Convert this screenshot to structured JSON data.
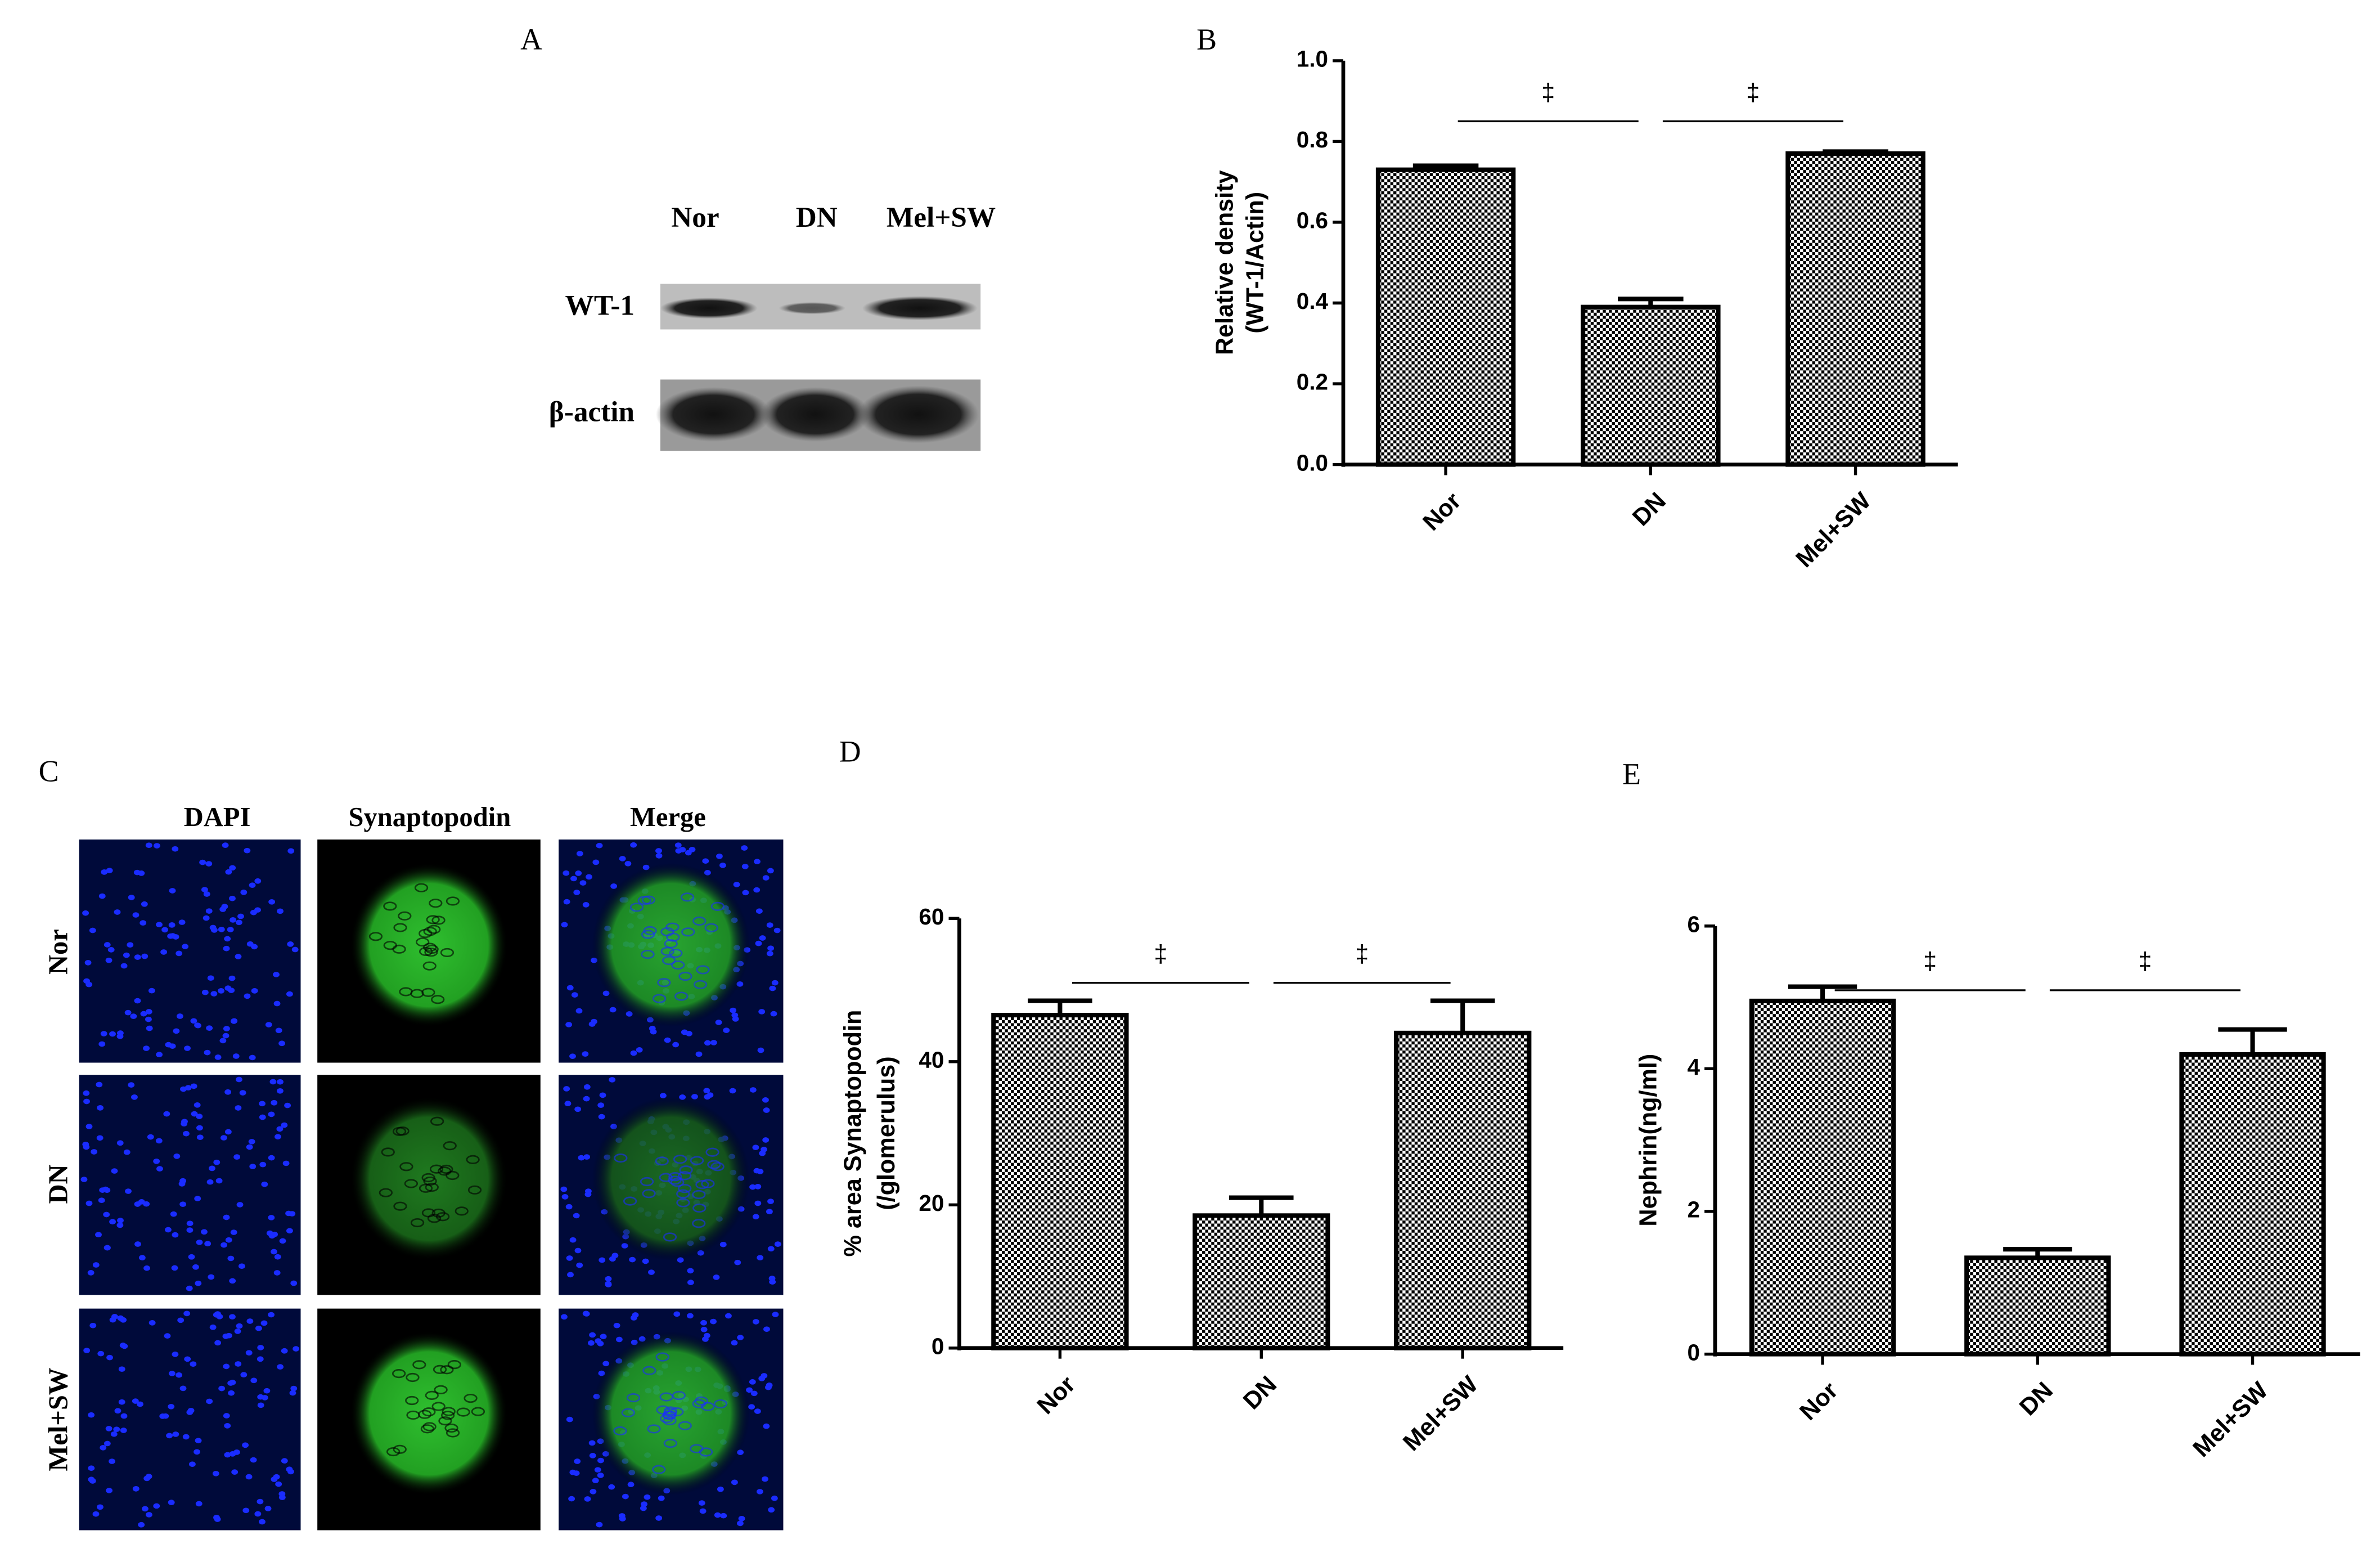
{
  "panel_a": {
    "label": "A",
    "lanes": [
      "Nor",
      "DN",
      "Mel+SW"
    ],
    "rows": [
      "WT-1",
      "β-actin"
    ]
  },
  "panel_c": {
    "label": "C",
    "columns": [
      "DAPI",
      "Synaptopodin",
      "Merge"
    ],
    "rows": [
      "Nor",
      "DN",
      "Mel+SW"
    ]
  },
  "chart_data": [
    {
      "panel": "B",
      "type": "bar",
      "ylabel": [
        "Relative density",
        "(WT-1/Actin)"
      ],
      "categories": [
        "Nor",
        "DN",
        "Mel+SW"
      ],
      "values": [
        0.73,
        0.39,
        0.77
      ],
      "errors": [
        0.01,
        0.02,
        0.005
      ],
      "color": "#000000",
      "ylim": [
        0,
        1
      ],
      "yticks": [
        {
          "value": 0,
          "label": "0.0"
        },
        0.2,
        0.4,
        0.6,
        0.8,
        {
          "value": 1,
          "label": "1.0"
        }
      ],
      "annotations": [
        "‡",
        "‡"
      ]
    },
    {
      "panel": "D",
      "type": "bar",
      "ylabel": [
        "% area Synaptopodin",
        "(/glomerulus)"
      ],
      "categories": [
        "Nor",
        "DN",
        "Mel+SW"
      ],
      "values": [
        46.5,
        18.5,
        44
      ],
      "errors": [
        2,
        2.5,
        4.5
      ],
      "color": "#000000",
      "ylim": [
        0,
        60
      ],
      "yticks": [
        0,
        20,
        40,
        60
      ],
      "annotations": [
        "‡",
        "‡"
      ]
    },
    {
      "panel": "E",
      "type": "bar",
      "ylabel": [
        "Nephrin(ng/ml)"
      ],
      "categories": [
        "Nor",
        "DN",
        "Mel+SW"
      ],
      "values": [
        4.95,
        1.35,
        4.2
      ],
      "errors": [
        0.2,
        0.12,
        0.35
      ],
      "color": "#000000",
      "ylim": [
        0,
        6
      ],
      "yticks": [
        0,
        2,
        4,
        6
      ],
      "annotations": [
        "‡",
        "‡"
      ]
    }
  ]
}
